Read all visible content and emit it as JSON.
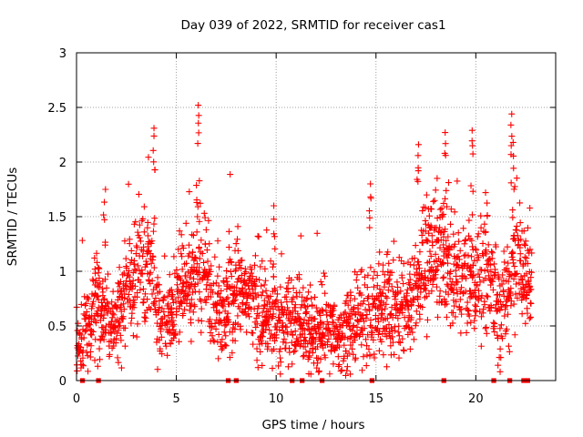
{
  "colors": {
    "series": "#ff0000",
    "grid": "#a0a0a0",
    "axis": "#000000"
  },
  "chart_data": {
    "type": "scatter",
    "title": "Day 039 of 2022, SRMTID for receiver cas1",
    "xlabel": "GPS time / hours",
    "ylabel": "SRMTID / TECUs",
    "xlim": [
      0,
      24
    ],
    "ylim": [
      0,
      3
    ],
    "xticks": [
      0,
      5,
      10,
      15,
      20
    ],
    "yticks": [
      0,
      0.5,
      1,
      1.5,
      2,
      2.5,
      3
    ],
    "xtick_labels": [
      "0",
      "5",
      "10",
      "15",
      "20"
    ],
    "ytick_labels": [
      "0",
      "0.5",
      "1",
      "1.5",
      "2",
      "2.5",
      "3"
    ],
    "grid": true,
    "marker": "plus",
    "series": [
      {
        "name": "SRMTID",
        "trend_x": [
          0,
          0.2,
          0.6,
          1.0,
          1.5,
          2.0,
          2.5,
          3.0,
          3.4,
          3.8,
          4.1,
          4.4,
          5.0,
          5.6,
          6.0,
          6.3,
          6.8,
          7.3,
          7.8,
          8.3,
          8.8,
          9.3,
          9.8,
          10.3,
          10.8,
          11.3,
          11.8,
          12.3,
          12.8,
          13.3,
          13.8,
          14.3,
          14.8,
          15.3,
          15.8,
          16.3,
          16.8,
          17.2,
          17.6,
          18.0,
          18.4,
          18.8,
          19.3,
          19.8,
          20.3,
          20.8,
          21.2,
          21.6,
          22.0,
          22.4,
          22.8
        ],
        "trend_y": [
          0.3,
          0.25,
          0.5,
          0.75,
          0.5,
          0.55,
          0.75,
          0.95,
          1.05,
          1.15,
          0.5,
          0.45,
          0.75,
          0.8,
          1.1,
          1.0,
          0.8,
          0.6,
          0.8,
          0.85,
          0.7,
          0.55,
          0.6,
          0.55,
          0.55,
          0.45,
          0.45,
          0.45,
          0.4,
          0.45,
          0.5,
          0.55,
          0.6,
          0.7,
          0.7,
          0.65,
          0.7,
          1.0,
          1.1,
          1.2,
          1.1,
          0.9,
          0.85,
          0.9,
          1.0,
          0.9,
          0.6,
          0.8,
          1.2,
          1.0,
          0.8
        ],
        "zero_points_x": [
          0.3,
          1.1,
          7.6,
          8.0,
          10.8,
          11.3,
          12.3,
          14.8,
          18.4,
          20.9,
          21.7,
          22.4,
          22.6
        ],
        "peaks": [
          {
            "x": 3.9,
            "y": 2.31
          },
          {
            "x": 6.1,
            "y": 2.52
          },
          {
            "x": 18.5,
            "y": 2.27
          },
          {
            "x": 19.8,
            "y": 2.29
          },
          {
            "x": 21.8,
            "y": 2.44
          },
          {
            "x": 1.4,
            "y": 1.75
          },
          {
            "x": 9.9,
            "y": 1.6
          },
          {
            "x": 14.7,
            "y": 1.8
          },
          {
            "x": 17.1,
            "y": 2.16
          },
          {
            "x": 21.9,
            "y": 2.18
          }
        ]
      }
    ]
  }
}
